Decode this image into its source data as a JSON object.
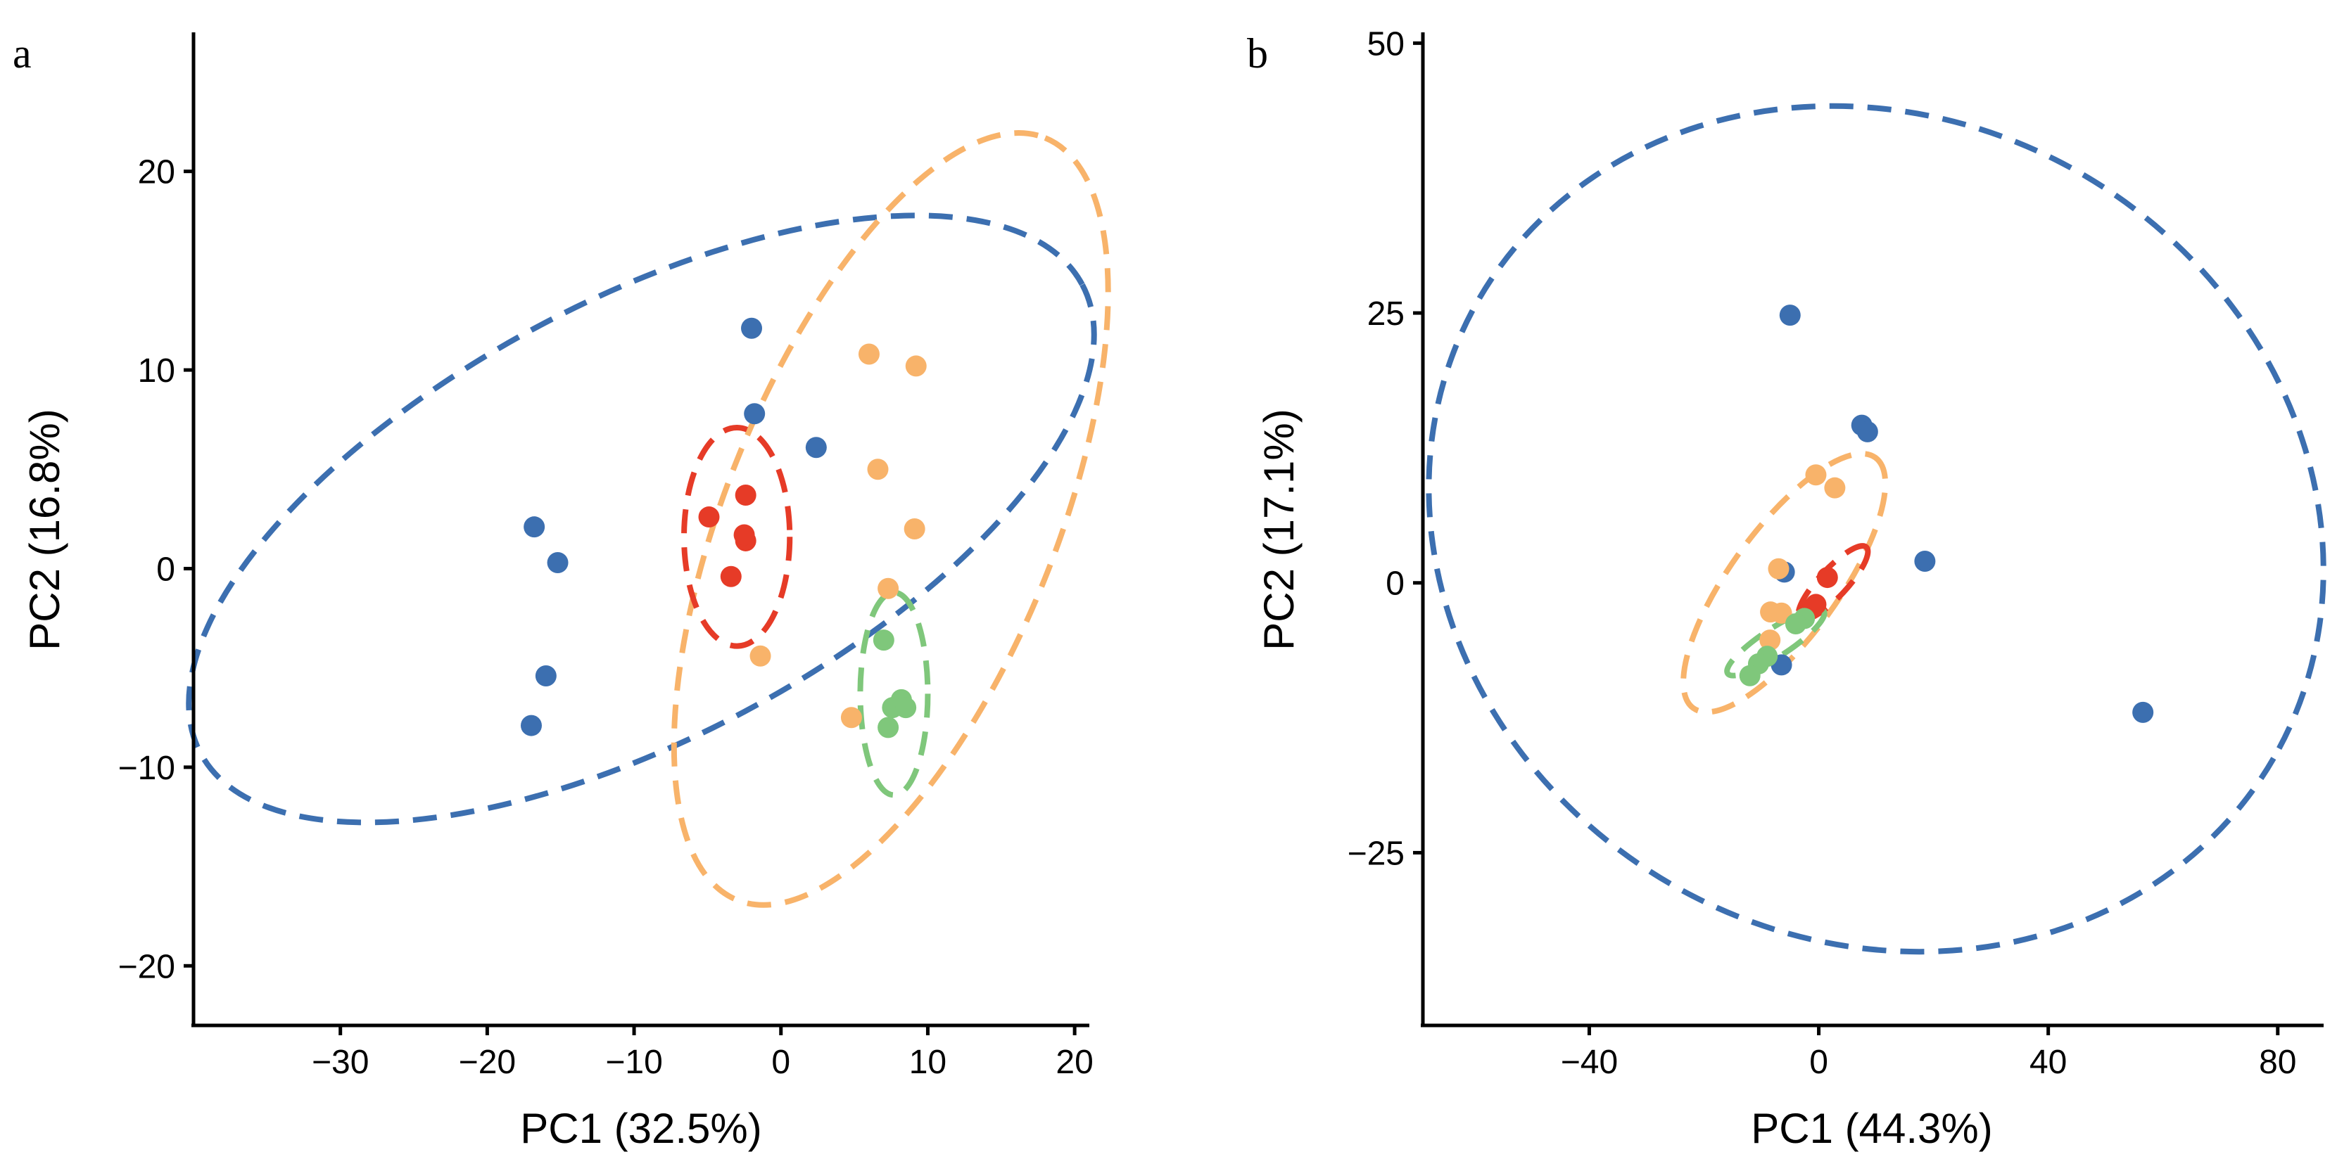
{
  "colors": {
    "blue": "#3C6FB0",
    "orange": "#F8B36A",
    "red": "#E63B27",
    "green": "#7FC77B"
  },
  "chart_data": [
    {
      "type": "scatter",
      "panel_label": "a",
      "xlabel": "PC1 (32.5%)",
      "ylabel": "PC2 (16.8%)",
      "xlim": [
        -40,
        21
      ],
      "ylim": [
        -23,
        27
      ],
      "xticks": [
        -30,
        -20,
        -10,
        0,
        10,
        20
      ],
      "xtick_labels": [
        "−30",
        "−20",
        "−10",
        "0",
        "10",
        "20"
      ],
      "yticks": [
        -20,
        -10,
        0,
        10,
        20
      ],
      "ytick_labels": [
        "−20",
        "−10",
        "0",
        "10",
        "20"
      ],
      "series": [
        {
          "name": "blue",
          "color": "#3C6FB0",
          "points": [
            [
              -2,
              12.1
            ],
            [
              -1.8,
              7.8
            ],
            [
              2.4,
              6.1
            ],
            [
              -16.8,
              2.1
            ],
            [
              -15.2,
              0.3
            ],
            [
              -16,
              -5.4
            ],
            [
              -17,
              -7.9
            ]
          ],
          "ellipse": {
            "cx": -9.5,
            "cy": 2.5,
            "rx": 34,
            "ry": 11,
            "angle_deg": 28
          }
        },
        {
          "name": "orange",
          "color": "#F8B36A",
          "points": [
            [
              6,
              10.8
            ],
            [
              9.2,
              10.2
            ],
            [
              6.6,
              5
            ],
            [
              9.1,
              2
            ],
            [
              7.3,
              -1
            ],
            [
              -1.4,
              -4.4
            ],
            [
              4.8,
              -7.5
            ]
          ],
          "ellipse": {
            "cx": 7.5,
            "cy": 2.5,
            "rx": 28,
            "ry": 8.3,
            "angle_deg": 68
          }
        },
        {
          "name": "red",
          "color": "#E63B27",
          "points": [
            [
              -2.4,
              3.7
            ],
            [
              -4.9,
              2.6
            ],
            [
              -2.4,
              1.4
            ],
            [
              -2.5,
              1.7
            ],
            [
              -3.4,
              -0.4
            ]
          ],
          "ellipse": {
            "cx": -3,
            "cy": 1.6,
            "rx": 3.6,
            "ry": 5.5,
            "angle_deg": 0
          }
        },
        {
          "name": "green",
          "color": "#7FC77B",
          "points": [
            [
              7,
              -3.6
            ],
            [
              8.2,
              -6.6
            ],
            [
              7.6,
              -7
            ],
            [
              8.5,
              -7
            ],
            [
              7.3,
              -8
            ]
          ],
          "ellipse": {
            "cx": 7.7,
            "cy": -6.3,
            "rx": 2.3,
            "ry": 5.1,
            "angle_deg": 0
          }
        }
      ]
    },
    {
      "type": "scatter",
      "panel_label": "b",
      "xlabel": "PC1 (44.3%)",
      "ylabel": "PC2 (17.1%)",
      "xlim": [
        -69,
        88
      ],
      "ylim": [
        -41,
        51
      ],
      "xticks": [
        -40,
        0,
        40,
        80
      ],
      "xtick_labels": [
        "−40",
        "0",
        "40",
        "80"
      ],
      "yticks": [
        -25,
        0,
        25,
        50
      ],
      "ytick_labels": [
        "−25",
        "0",
        "25",
        "50"
      ],
      "series": [
        {
          "name": "blue",
          "color": "#3C6FB0",
          "points": [
            [
              -5,
              24.8
            ],
            [
              7.5,
              14.6
            ],
            [
              8.5,
              14
            ],
            [
              18.5,
              2
            ],
            [
              56.5,
              -12
            ],
            [
              -6,
              1
            ],
            [
              -6.5,
              -7.6
            ]
          ],
          "ellipse": {
            "cx": 10,
            "cy": 5,
            "rx": 80,
            "ry": 38,
            "angle_deg": -30
          }
        },
        {
          "name": "orange",
          "color": "#F8B36A",
          "points": [
            [
              -0.5,
              10
            ],
            [
              2.8,
              8.8
            ],
            [
              -7,
              1.3
            ],
            [
              -8.4,
              -2.7
            ],
            [
              -6.5,
              -2.8
            ],
            [
              -8.5,
              -5.3
            ]
          ],
          "ellipse": {
            "cx": -6,
            "cy": 0,
            "rx": 27,
            "ry": 5,
            "angle_deg": 54
          }
        },
        {
          "name": "red",
          "color": "#E63B27",
          "points": [
            [
              1.5,
              0.5
            ],
            [
              -0.5,
              -2
            ],
            [
              -1,
              -2.3
            ]
          ],
          "ellipse": {
            "cx": 2.5,
            "cy": 0,
            "rx": 8.5,
            "ry": 1.3,
            "angle_deg": 47
          }
        },
        {
          "name": "green",
          "color": "#7FC77B",
          "points": [
            [
              -2.5,
              -3.3
            ],
            [
              -4,
              -3.8
            ],
            [
              -9,
              -6.8
            ],
            [
              -10.5,
              -7.5
            ],
            [
              -12,
              -8.6
            ]
          ],
          "ellipse": {
            "cx": -7.5,
            "cy": -5.5,
            "rx": 10,
            "ry": 1.3,
            "angle_deg": 33
          }
        }
      ]
    }
  ]
}
